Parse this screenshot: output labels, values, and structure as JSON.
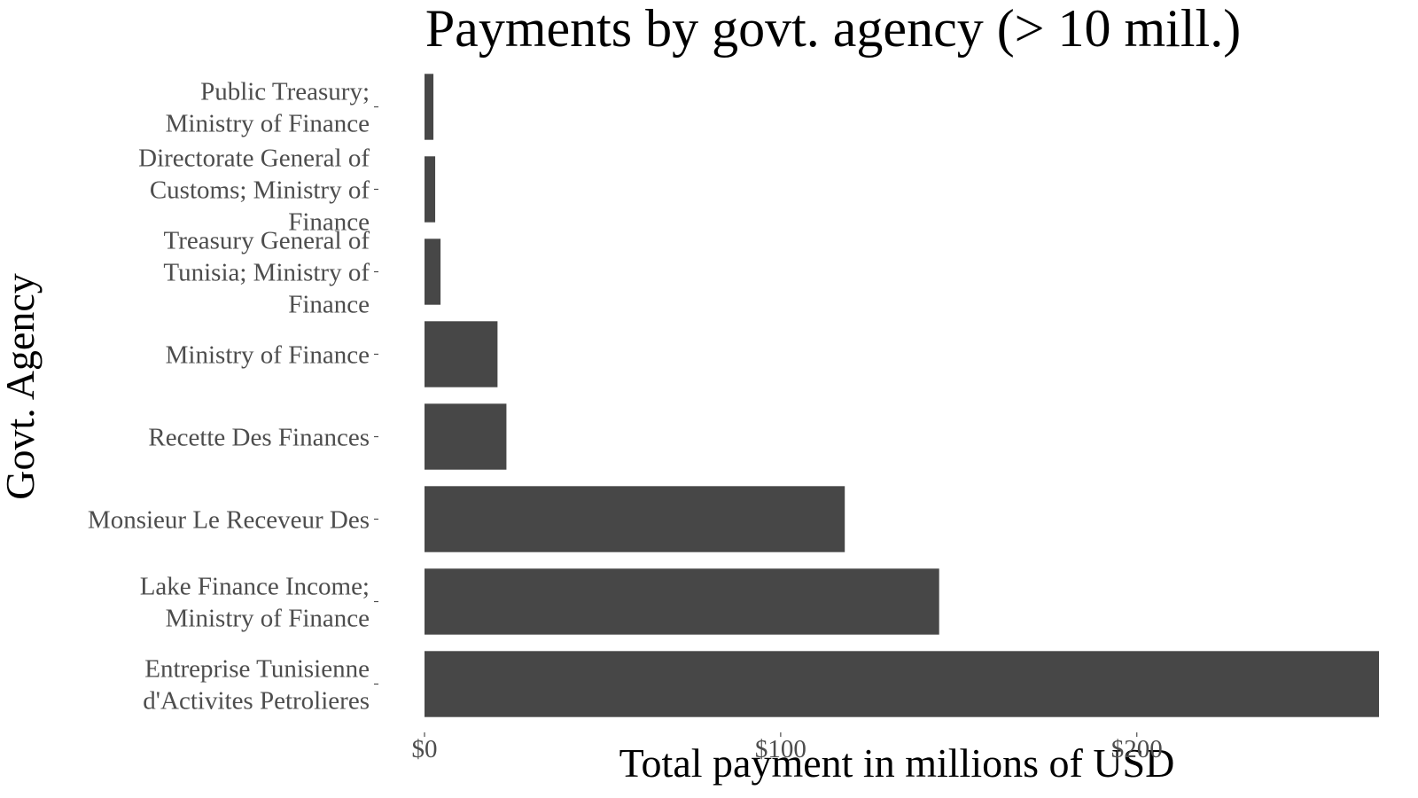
{
  "chart_data": {
    "type": "bar",
    "orientation": "horizontal",
    "title": "Payments by govt. agency (> 10 mill.)",
    "xlabel": "Total payment in millions of USD",
    "ylabel": "Govt. Agency",
    "categories": [
      [
        "Public Treasury;",
        "Ministry of Finance"
      ],
      [
        "Directorate General of",
        "Customs; Ministry of",
        "Finance"
      ],
      [
        "Treasury General of",
        "Tunisia; Ministry of",
        "Finance"
      ],
      [
        "Ministry of Finance"
      ],
      [
        "Recette Des Finances"
      ],
      [
        "Monsieur Le Receveur Des"
      ],
      [
        "Lake Finance Income;",
        "Ministry of Finance"
      ],
      [
        "Entreprise Tunisienne",
        "d'Activites Petrolieres"
      ]
    ],
    "values": [
      2.5,
      3,
      4.5,
      20.5,
      23,
      118,
      144.5,
      268
    ],
    "xlim": [
      0,
      268
    ],
    "xticks": [
      0,
      100,
      200
    ],
    "xtick_labels": [
      "$0",
      "$100",
      "$200"
    ],
    "grid": false,
    "legend": "none",
    "bar_color": "#474747"
  }
}
